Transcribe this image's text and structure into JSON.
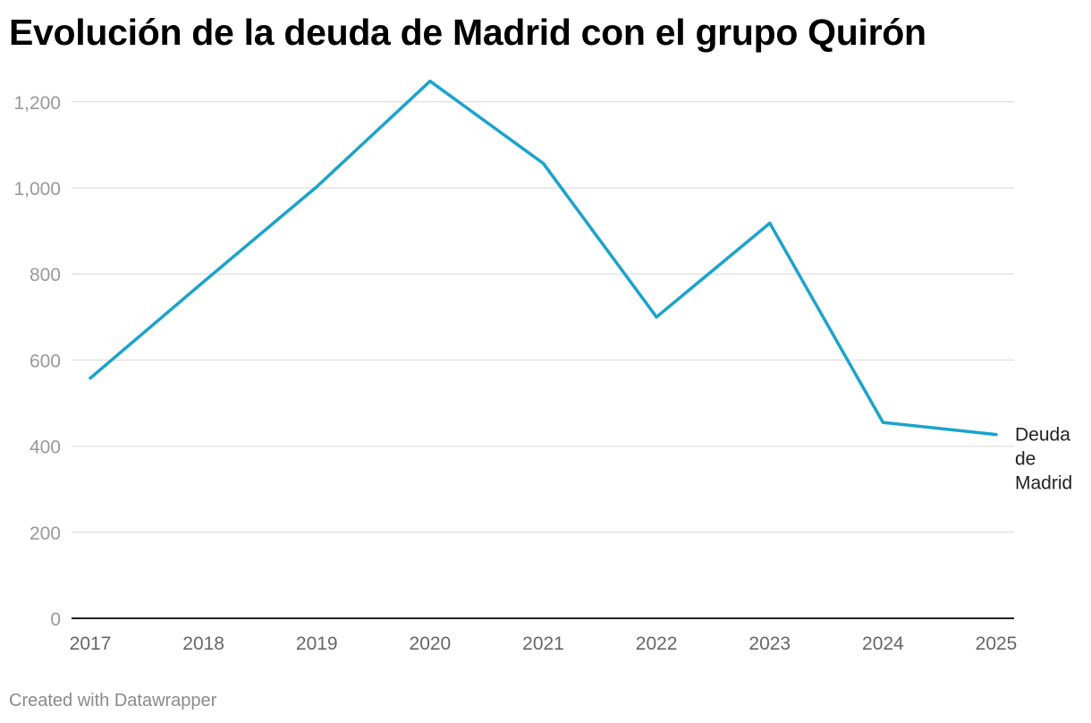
{
  "chart_data": {
    "type": "line",
    "title": "Evolución de la deuda de Madrid con el grupo Quirón",
    "xlabel": "",
    "ylabel": "",
    "categories": [
      "2017",
      "2018",
      "2019",
      "2020",
      "2021",
      "2022",
      "2023",
      "2024",
      "2025"
    ],
    "series": [
      {
        "name": "Deuda de Madrid",
        "label_lines": [
          "Deuda",
          "de",
          "Madrid"
        ],
        "values": [
          558,
          782,
          1003,
          1248,
          1057,
          700,
          918,
          455,
          427
        ],
        "color": "#1aa3cc"
      }
    ],
    "yticks": [
      0,
      200,
      400,
      600,
      800,
      "1,000",
      "1,200"
    ],
    "ylim": [
      0,
      1300
    ],
    "grid": true,
    "legend": "none"
  },
  "footer": {
    "credit": "Created with Datawrapper"
  }
}
